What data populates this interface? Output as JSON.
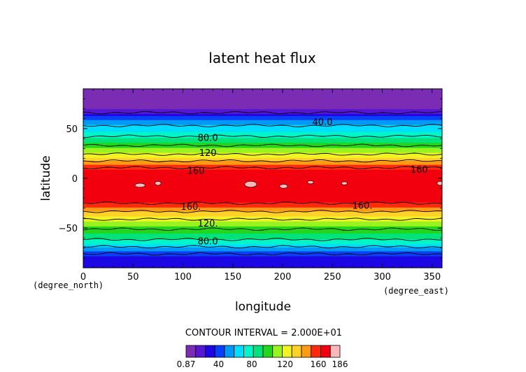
{
  "chart_data": {
    "type": "contour",
    "title": "latent heat flux",
    "xlabel": "longitude",
    "ylabel": "latitude",
    "x_unit": "(degree_east)",
    "y_unit": "(degree_north)",
    "xlim": [
      0,
      360
    ],
    "ylim": [
      -90,
      90
    ],
    "x_ticks": [
      "0",
      "50",
      "100",
      "150",
      "200",
      "250",
      "300",
      "350"
    ],
    "y_ticks": [
      "50",
      "0",
      "−50"
    ],
    "contour_interval_text": "CONTOUR INTERVAL = 2.000E+01",
    "contour_interval": 20,
    "data_min": 0.87,
    "data_max": 186,
    "zonal_mean_profile": {
      "lat": [
        -90,
        -80,
        -72,
        -65,
        -58,
        -50,
        -42,
        -36,
        -30,
        -22,
        -12,
        0,
        10,
        15,
        20,
        25,
        30,
        35,
        40,
        46,
        52,
        57,
        62,
        67,
        75,
        90
      ],
      "value": [
        25,
        30,
        50,
        72,
        88,
        102,
        118,
        132,
        150,
        166,
        170,
        171,
        162,
        148,
        132,
        118,
        108,
        95,
        85,
        72,
        62,
        52,
        40,
        15,
        8,
        3
      ]
    },
    "contour_labels": [
      {
        "text": "40.0",
        "lon": 240,
        "lat": 57
      },
      {
        "text": "80.0",
        "lon": 125,
        "lat": 41
      },
      {
        "text": "120",
        "lon": 125,
        "lat": 26
      },
      {
        "text": "160",
        "lon": 113,
        "lat": 8
      },
      {
        "text": "160",
        "lon": 337,
        "lat": 9
      },
      {
        "text": "160.",
        "lon": 108,
        "lat": -28
      },
      {
        "text": "160.",
        "lon": 280,
        "lat": -27
      },
      {
        "text": "120.",
        "lon": 125,
        "lat": -45
      },
      {
        "text": "80.0",
        "lon": 125,
        "lat": -63
      }
    ],
    "colorbar": {
      "colors": [
        "#7b2cb5",
        "#5717d2",
        "#1d06e4",
        "#0a3ef8",
        "#0099f6",
        "#00deff",
        "#00f5c8",
        "#00e27a",
        "#23d61b",
        "#98f31f",
        "#f2f322",
        "#ffd22a",
        "#ff9a14",
        "#ff2a0e",
        "#f3000f",
        "#ffb7b9"
      ],
      "labels": [
        "0.87",
        "40",
        "80",
        "120",
        "160",
        "186"
      ]
    },
    "grid": false
  }
}
